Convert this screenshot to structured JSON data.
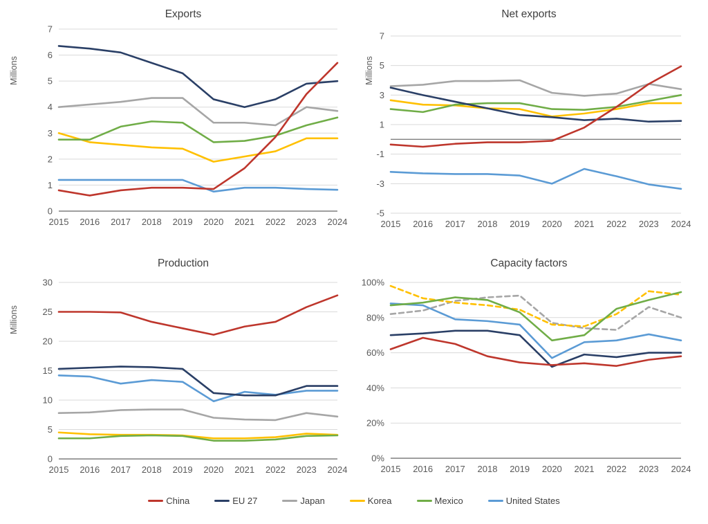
{
  "page": {
    "background": "#ffffff"
  },
  "colors": {
    "china": "#BE362C",
    "eu27": "#2A3F66",
    "japan": "#A6A6A6",
    "korea": "#FFC000",
    "mexico": "#70AD47",
    "us": "#5B9BD5",
    "gridline": "#D9D9D9",
    "axis": "#7F7F7F",
    "tick_text": "#595959",
    "title_text": "#3F3F3F"
  },
  "legend": {
    "items": [
      {
        "label": "China",
        "color_key": "china"
      },
      {
        "label": "EU 27",
        "color_key": "eu27"
      },
      {
        "label": "Japan",
        "color_key": "japan"
      },
      {
        "label": "Korea",
        "color_key": "korea"
      },
      {
        "label": "Mexico",
        "color_key": "mexico"
      },
      {
        "label": "United States",
        "color_key": "us"
      }
    ]
  },
  "chart_data": [
    {
      "type": "line",
      "title": "Exports",
      "ylabel": "Millions",
      "ylim": [
        0,
        7
      ],
      "baseline": 0,
      "grid": true,
      "legend_position": "shared-bottom",
      "yticks": {
        "values": [
          0,
          1,
          2,
          3,
          4,
          5,
          6,
          7
        ],
        "labels": [
          "0",
          "1",
          "2",
          "3",
          "4",
          "5",
          "6",
          "7"
        ]
      },
      "categories": [
        "2015",
        "2016",
        "2017",
        "2018",
        "2019",
        "2020",
        "2021",
        "2022",
        "2023",
        "2024"
      ],
      "series": [
        {
          "name": "Japan",
          "color_key": "japan",
          "dashed": false,
          "values": [
            4.0,
            4.1,
            4.2,
            4.35,
            4.35,
            3.4,
            3.4,
            3.3,
            4.0,
            3.85
          ]
        },
        {
          "name": "Korea",
          "color_key": "korea",
          "dashed": false,
          "values": [
            3.0,
            2.65,
            2.55,
            2.45,
            2.4,
            1.9,
            2.1,
            2.3,
            2.8,
            2.8
          ]
        },
        {
          "name": "United States",
          "color_key": "us",
          "dashed": false,
          "values": [
            1.2,
            1.2,
            1.2,
            1.2,
            1.2,
            0.75,
            0.9,
            0.9,
            0.85,
            0.82
          ]
        },
        {
          "name": "Mexico",
          "color_key": "mexico",
          "dashed": false,
          "values": [
            2.75,
            2.75,
            3.25,
            3.45,
            3.4,
            2.65,
            2.7,
            2.9,
            3.3,
            3.6
          ]
        },
        {
          "name": "EU 27",
          "color_key": "eu27",
          "dashed": false,
          "values": [
            6.35,
            6.25,
            6.1,
            5.7,
            5.3,
            4.3,
            4.0,
            4.3,
            4.9,
            5.0
          ]
        },
        {
          "name": "China",
          "color_key": "china",
          "dashed": false,
          "values": [
            0.8,
            0.6,
            0.8,
            0.9,
            0.9,
            0.85,
            1.65,
            2.85,
            4.5,
            5.7
          ]
        }
      ]
    },
    {
      "type": "line",
      "title": "Net exports",
      "ylabel": "Millions",
      "ylim": [
        -5,
        7
      ],
      "baseline": 0,
      "grid": true,
      "legend_position": "shared-bottom",
      "yticks": {
        "values": [
          -5,
          -3,
          -1,
          1,
          3,
          5,
          7
        ],
        "labels": [
          "-5",
          "-3",
          "-1",
          "1",
          "3",
          "5",
          "7"
        ]
      },
      "categories": [
        "2015",
        "2016",
        "2017",
        "2018",
        "2019",
        "2020",
        "2021",
        "2022",
        "2023",
        "2024"
      ],
      "series": [
        {
          "name": "Japan",
          "color_key": "japan",
          "dashed": false,
          "values": [
            3.6,
            3.7,
            3.95,
            3.95,
            4.0,
            3.15,
            2.95,
            3.1,
            3.75,
            3.4
          ]
        },
        {
          "name": "Korea",
          "color_key": "korea",
          "dashed": false,
          "values": [
            2.65,
            2.35,
            2.3,
            2.1,
            2.05,
            1.55,
            1.75,
            2.05,
            2.45,
            2.45
          ]
        },
        {
          "name": "United States",
          "color_key": "us",
          "dashed": false,
          "values": [
            -2.2,
            -2.3,
            -2.35,
            -2.35,
            -2.45,
            -3.0,
            -2.0,
            -2.5,
            -3.05,
            -3.35
          ]
        },
        {
          "name": "Mexico",
          "color_key": "mexico",
          "dashed": false,
          "values": [
            2.05,
            1.85,
            2.35,
            2.45,
            2.45,
            2.05,
            2.0,
            2.2,
            2.6,
            3.0
          ]
        },
        {
          "name": "EU 27",
          "color_key": "eu27",
          "dashed": false,
          "values": [
            3.5,
            3.0,
            2.55,
            2.1,
            1.65,
            1.5,
            1.3,
            1.4,
            1.2,
            1.25
          ]
        },
        {
          "name": "China",
          "color_key": "china",
          "dashed": false,
          "values": [
            -0.35,
            -0.5,
            -0.3,
            -0.2,
            -0.2,
            -0.1,
            0.8,
            2.2,
            3.75,
            4.95
          ]
        }
      ]
    },
    {
      "type": "line",
      "title": "Production",
      "ylabel": "Millions",
      "ylim": [
        0,
        30
      ],
      "baseline": 0,
      "grid": true,
      "legend_position": "shared-bottom",
      "yticks": {
        "values": [
          0,
          5,
          10,
          15,
          20,
          25,
          30
        ],
        "labels": [
          "0",
          "5",
          "10",
          "15",
          "20",
          "25",
          "30"
        ]
      },
      "categories": [
        "2015",
        "2016",
        "2017",
        "2018",
        "2019",
        "2020",
        "2021",
        "2022",
        "2023",
        "2024"
      ],
      "series": [
        {
          "name": "Japan",
          "color_key": "japan",
          "dashed": false,
          "values": [
            7.8,
            7.9,
            8.3,
            8.4,
            8.4,
            7.0,
            6.7,
            6.6,
            7.8,
            7.2
          ]
        },
        {
          "name": "Korea",
          "color_key": "korea",
          "dashed": false,
          "values": [
            4.5,
            4.2,
            4.1,
            4.1,
            4.0,
            3.5,
            3.5,
            3.7,
            4.3,
            4.1
          ]
        },
        {
          "name": "United States",
          "color_key": "us",
          "dashed": false,
          "values": [
            14.2,
            14.0,
            12.8,
            13.4,
            13.1,
            9.8,
            11.4,
            10.9,
            11.6,
            11.6
          ]
        },
        {
          "name": "Mexico",
          "color_key": "mexico",
          "dashed": false,
          "values": [
            3.5,
            3.5,
            3.9,
            4.0,
            3.9,
            3.1,
            3.1,
            3.3,
            3.9,
            4.0
          ]
        },
        {
          "name": "EU 27",
          "color_key": "eu27",
          "dashed": false,
          "values": [
            15.3,
            15.5,
            15.7,
            15.6,
            15.3,
            11.2,
            10.8,
            10.8,
            12.4,
            12.4
          ]
        },
        {
          "name": "China",
          "color_key": "china",
          "dashed": false,
          "values": [
            25.0,
            25.0,
            24.9,
            23.3,
            22.2,
            21.1,
            22.5,
            23.3,
            25.8,
            27.8
          ]
        }
      ]
    },
    {
      "type": "line",
      "title": "Capacity factors",
      "ylabel": "",
      "ylim": [
        0,
        100
      ],
      "baseline": 0,
      "grid": true,
      "legend_position": "shared-bottom",
      "yticks": {
        "values": [
          0,
          20,
          40,
          60,
          80,
          100
        ],
        "labels": [
          "0%",
          "20%",
          "40%",
          "60%",
          "80%",
          "100%"
        ]
      },
      "categories": [
        "2015",
        "2016",
        "2017",
        "2018",
        "2019",
        "2020",
        "2021",
        "2022",
        "2023",
        "2024"
      ],
      "series": [
        {
          "name": "Japan",
          "color_key": "japan",
          "dashed": true,
          "values": [
            82,
            84,
            89.5,
            91.5,
            92.5,
            77,
            74,
            73,
            86,
            80
          ]
        },
        {
          "name": "Korea",
          "color_key": "korea",
          "dashed": true,
          "values": [
            98,
            91,
            88.5,
            87,
            84.5,
            76,
            75,
            82,
            95,
            93
          ]
        },
        {
          "name": "United States",
          "color_key": "us",
          "dashed": false,
          "values": [
            88,
            87,
            79,
            78,
            76,
            57,
            66,
            67,
            70.5,
            67
          ]
        },
        {
          "name": "Mexico",
          "color_key": "mexico",
          "dashed": false,
          "values": [
            87,
            88.5,
            91.5,
            90,
            83,
            67,
            70,
            85,
            90,
            94.5
          ]
        },
        {
          "name": "EU 27",
          "color_key": "eu27",
          "dashed": false,
          "values": [
            70,
            71,
            72.5,
            72.5,
            70,
            52,
            59,
            57.5,
            60,
            60
          ]
        },
        {
          "name": "China",
          "color_key": "china",
          "dashed": false,
          "values": [
            62,
            68.5,
            65,
            58,
            54.5,
            53,
            54,
            52.5,
            56,
            58
          ]
        }
      ]
    }
  ]
}
